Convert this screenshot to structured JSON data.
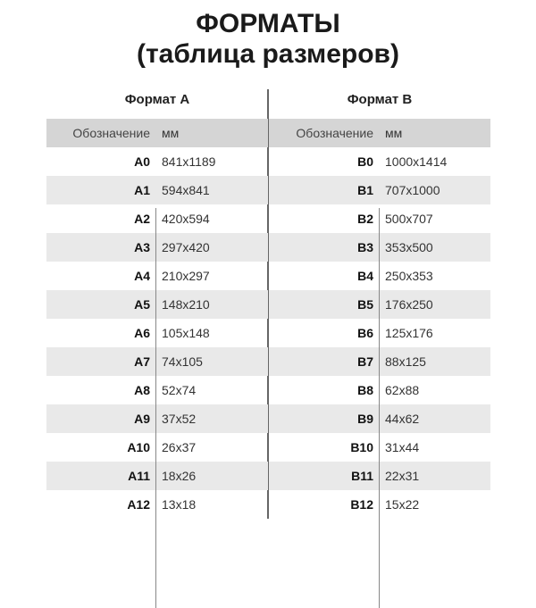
{
  "title": "ФОРМАТЫ",
  "subtitle": "(таблица размеров)",
  "tables": [
    {
      "caption": "Формат А",
      "headers": [
        "Обозначение",
        "мм"
      ],
      "rows": [
        [
          "A0",
          "841x1189"
        ],
        [
          "A1",
          "594x841"
        ],
        [
          "A2",
          "420x594"
        ],
        [
          "A3",
          "297x420"
        ],
        [
          "A4",
          "210x297"
        ],
        [
          "A5",
          "148x210"
        ],
        [
          "A6",
          "105x148"
        ],
        [
          "A7",
          "74x105"
        ],
        [
          "A8",
          "52x74"
        ],
        [
          "A9",
          "37x52"
        ],
        [
          "A10",
          "26x37"
        ],
        [
          "A11",
          "18x26"
        ],
        [
          "A12",
          "13x18"
        ]
      ]
    },
    {
      "caption": "Формат В",
      "headers": [
        "Обозначение",
        "мм"
      ],
      "rows": [
        [
          "B0",
          "1000x1414"
        ],
        [
          "B1",
          "707x1000"
        ],
        [
          "B2",
          "500x707"
        ],
        [
          "B3",
          "353x500"
        ],
        [
          "B4",
          "250x353"
        ],
        [
          "B5",
          "176x250"
        ],
        [
          "B6",
          "125x176"
        ],
        [
          "B7",
          "88x125"
        ],
        [
          "B8",
          "62x88"
        ],
        [
          "B9",
          "44x62"
        ],
        [
          "B10",
          "31x44"
        ],
        [
          "B11",
          "22x31"
        ],
        [
          "B12",
          "15x22"
        ]
      ]
    }
  ]
}
